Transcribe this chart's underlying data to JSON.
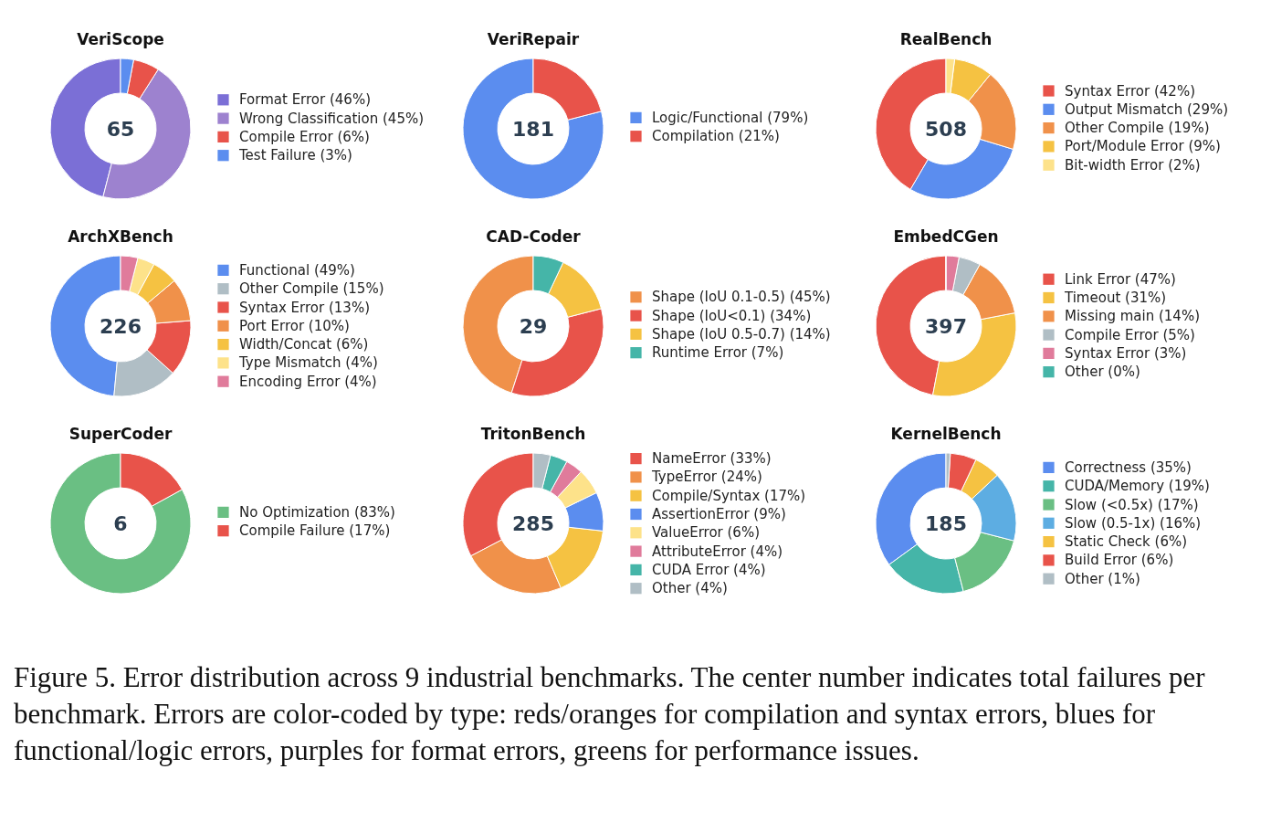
{
  "chart_data": [
    {
      "type": "donut",
      "title": "VeriScope",
      "categories": [
        "Format Error (46%)",
        "Wrong Classification (45%)",
        "Compile Error (6%)",
        "Test Failure (3%)"
      ],
      "values": [
        46,
        45,
        6,
        3
      ],
      "colors": [
        "#7b6fd6",
        "#9d82cf",
        "#e8534a",
        "#5b8def"
      ],
      "legend": "right",
      "annotations": [
        "65"
      ]
    },
    {
      "type": "donut",
      "title": "VeriRepair",
      "categories": [
        "Logic/Functional (79%)",
        "Compilation (21%)"
      ],
      "values": [
        79,
        21
      ],
      "colors": [
        "#5b8def",
        "#e8534a"
      ],
      "legend": "right",
      "annotations": [
        "181"
      ]
    },
    {
      "type": "donut",
      "title": "RealBench",
      "categories": [
        "Syntax Error (42%)",
        "Output Mismatch (29%)",
        "Other Compile (19%)",
        "Port/Module Error (9%)",
        "Bit-width Error (2%)"
      ],
      "values": [
        42,
        29,
        19,
        9,
        2
      ],
      "colors": [
        "#e8534a",
        "#5b8def",
        "#f0914a",
        "#f5c242",
        "#fde28a"
      ],
      "legend": "right",
      "annotations": [
        "508"
      ]
    },
    {
      "type": "donut",
      "title": "ArchXBench",
      "categories": [
        "Functional (49%)",
        "Other Compile (15%)",
        "Syntax Error (13%)",
        "Port Error (10%)",
        "Width/Concat (6%)",
        "Type Mismatch (4%)",
        "Encoding Error (4%)"
      ],
      "values": [
        49,
        15,
        13,
        10,
        6,
        4,
        4
      ],
      "colors": [
        "#5b8def",
        "#b0bec5",
        "#e8534a",
        "#f0914a",
        "#f5c242",
        "#fde28a",
        "#e07b9b"
      ],
      "legend": "right",
      "annotations": [
        "226"
      ]
    },
    {
      "type": "donut",
      "title": "CAD-Coder",
      "categories": [
        "Shape (IoU 0.1-0.5) (45%)",
        "Shape (IoU<0.1) (34%)",
        "Shape (IoU 0.5-0.7) (14%)",
        "Runtime Error (7%)"
      ],
      "values": [
        45,
        34,
        14,
        7
      ],
      "colors": [
        "#f0914a",
        "#e8534a",
        "#f5c242",
        "#45b5a8"
      ],
      "legend": "right",
      "annotations": [
        "29"
      ]
    },
    {
      "type": "donut",
      "title": "EmbedCGen",
      "categories": [
        "Link Error (47%)",
        "Timeout (31%)",
        "Missing main (14%)",
        "Compile Error (5%)",
        "Syntax Error (3%)",
        "Other (0%)"
      ],
      "values": [
        47,
        31,
        14,
        5,
        3,
        0
      ],
      "colors": [
        "#e8534a",
        "#f5c242",
        "#f0914a",
        "#b0bec5",
        "#e07b9b",
        "#45b5a8"
      ],
      "legend": "right",
      "annotations": [
        "397"
      ]
    },
    {
      "type": "donut",
      "title": "SuperCoder",
      "categories": [
        "No Optimization (83%)",
        "Compile Failure (17%)"
      ],
      "values": [
        83,
        17
      ],
      "colors": [
        "#6abf83",
        "#e8534a"
      ],
      "legend": "right",
      "annotations": [
        "6"
      ]
    },
    {
      "type": "donut",
      "title": "TritonBench",
      "categories": [
        "NameError (33%)",
        "TypeError (24%)",
        "Compile/Syntax (17%)",
        "AssertionError (9%)",
        "ValueError (6%)",
        "AttributeError (4%)",
        "CUDA Error (4%)",
        "Other (4%)"
      ],
      "values": [
        33,
        24,
        17,
        9,
        6,
        4,
        4,
        4
      ],
      "colors": [
        "#e8534a",
        "#f0914a",
        "#f5c242",
        "#5b8def",
        "#fde28a",
        "#e07b9b",
        "#45b5a8",
        "#b0bec5"
      ],
      "legend": "right",
      "annotations": [
        "285"
      ]
    },
    {
      "type": "donut",
      "title": "KernelBench",
      "categories": [
        "Correctness (35%)",
        "CUDA/Memory (19%)",
        "Slow (<0.5x) (17%)",
        "Slow (0.5-1x) (16%)",
        "Static Check (6%)",
        "Build Error (6%)",
        "Other (1%)"
      ],
      "values": [
        35,
        19,
        17,
        16,
        6,
        6,
        1
      ],
      "colors": [
        "#5b8def",
        "#45b5a8",
        "#6abf83",
        "#5dade2",
        "#f5c242",
        "#e8534a",
        "#b0bec5"
      ],
      "legend": "right",
      "annotations": [
        "185",
        "Figure 5. Error distribution across 9 industrial benchmarks. The center number indicates total failures per benchmark. Errors are color-coded by type: reds/oranges for compilation and syntax errors, blues for functional/logic errors, purples for format errors, greens for performance issues."
      ]
    }
  ]
}
